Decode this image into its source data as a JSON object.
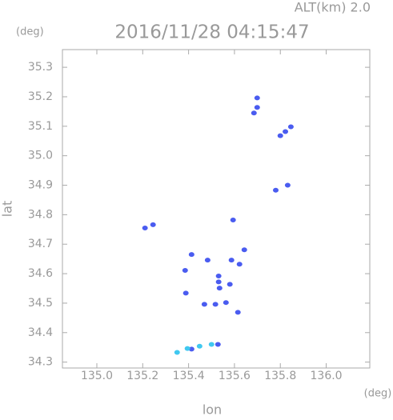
{
  "chart_data": {
    "type": "scatter",
    "title": "2016/11/28 04:15:47",
    "subtitle": "ALT(km) 2.0",
    "y_unit": "(deg)",
    "x_unit": "(deg)",
    "xlabel": "lon",
    "ylabel": "lat",
    "xlim": [
      134.85,
      136.19
    ],
    "ylim": [
      34.28,
      35.36
    ],
    "xticks": [
      {
        "value": 135.0,
        "label": "135.0"
      },
      135.2,
      135.4,
      135.6,
      135.8,
      {
        "value": 136.0,
        "label": "136.0"
      }
    ],
    "yticks": [
      34.3,
      34.4,
      34.5,
      34.6,
      34.7,
      34.8,
      34.9,
      {
        "value": 35.0,
        "label": "35.0"
      },
      35.1,
      35.2,
      35.3
    ],
    "series": [
      {
        "color": "#4a5cf0",
        "x": [
          135.699,
          135.699,
          135.685,
          135.8,
          135.822,
          135.846,
          135.78,
          135.832,
          135.21,
          135.245,
          135.594,
          135.643,
          135.622,
          135.587,
          135.483,
          135.413,
          135.385,
          135.388,
          135.531,
          135.535,
          135.58,
          135.563,
          135.517,
          135.615,
          135.531,
          135.469,
          135.413,
          135.528
        ],
        "values": [
          35.196,
          35.164,
          35.145,
          35.068,
          35.082,
          35.098,
          34.883,
          34.9,
          34.755,
          34.766,
          34.782,
          34.681,
          34.632,
          34.646,
          34.646,
          34.665,
          34.611,
          34.534,
          34.592,
          34.551,
          34.564,
          34.502,
          34.496,
          34.469,
          34.572,
          34.496,
          34.344,
          34.36
        ]
      },
      {
        "color": "#40c8f0",
        "x": [
          135.35,
          135.395,
          135.448,
          135.5
        ],
        "values": [
          34.333,
          34.346,
          34.354,
          34.36
        ]
      }
    ]
  }
}
